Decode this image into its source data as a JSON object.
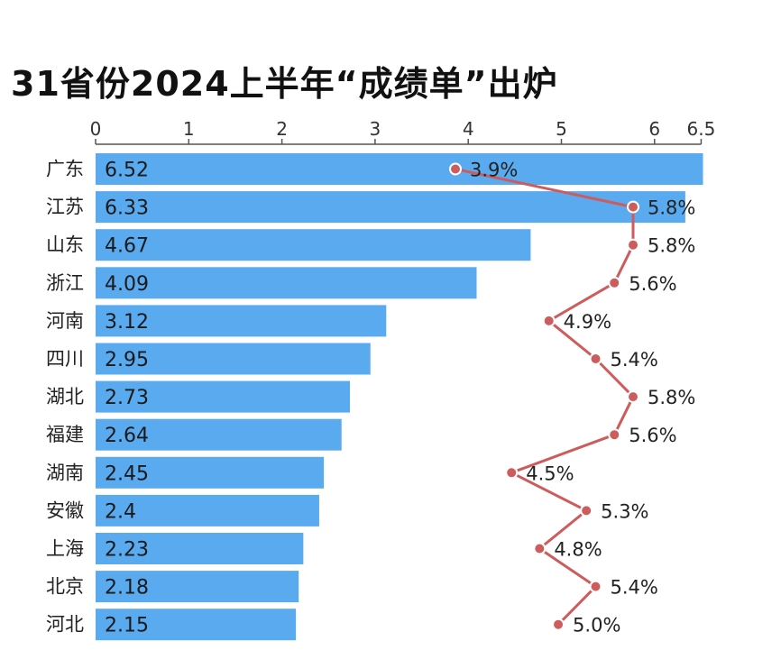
{
  "chart_data": {
    "type": "bar",
    "title": "31省份2024上半年“成绩单”出炉",
    "xaxis_ticks": [
      "0",
      "1",
      "2",
      "3",
      "4",
      "5",
      "6",
      "6.5"
    ],
    "xaxis_tick_values": [
      0,
      1,
      2,
      3,
      4,
      5,
      6,
      6.5
    ],
    "xlim": [
      0,
      6.5
    ],
    "categories": [
      "广东",
      "江苏",
      "山东",
      "浙江",
      "河南",
      "四川",
      "湖北",
      "福建",
      "湖南",
      "安徽",
      "上海",
      "北京",
      "河北"
    ],
    "values": [
      6.52,
      6.33,
      4.67,
      4.09,
      3.12,
      2.95,
      2.73,
      2.64,
      2.45,
      2.4,
      2.23,
      2.18,
      2.15
    ],
    "value_labels": [
      "6.52",
      "6.33",
      "4.67",
      "4.09",
      "3.12",
      "2.95",
      "2.73",
      "2.64",
      "2.45",
      "2.4",
      "2.23",
      "2.18",
      "2.15"
    ],
    "growth_rates": [
      3.9,
      5.8,
      5.8,
      5.6,
      4.9,
      5.4,
      5.8,
      5.6,
      4.5,
      5.3,
      4.8,
      5.4,
      5.0
    ],
    "growth_labels": [
      "3.9%",
      "5.8%",
      "5.8%",
      "5.6%",
      "4.9%",
      "5.4%",
      "5.8%",
      "5.6%",
      "4.5%",
      "5.3%",
      "4.8%",
      "5.4%",
      "5.0%"
    ],
    "growth_axis_range": [
      2.0,
      6.5
    ],
    "orientation": "horizontal",
    "colors": {
      "bar": "#5aaaf0",
      "line": "#cd5c5c",
      "marker_fill": "#cd5c5c",
      "marker_stroke": "#ffffff"
    }
  }
}
